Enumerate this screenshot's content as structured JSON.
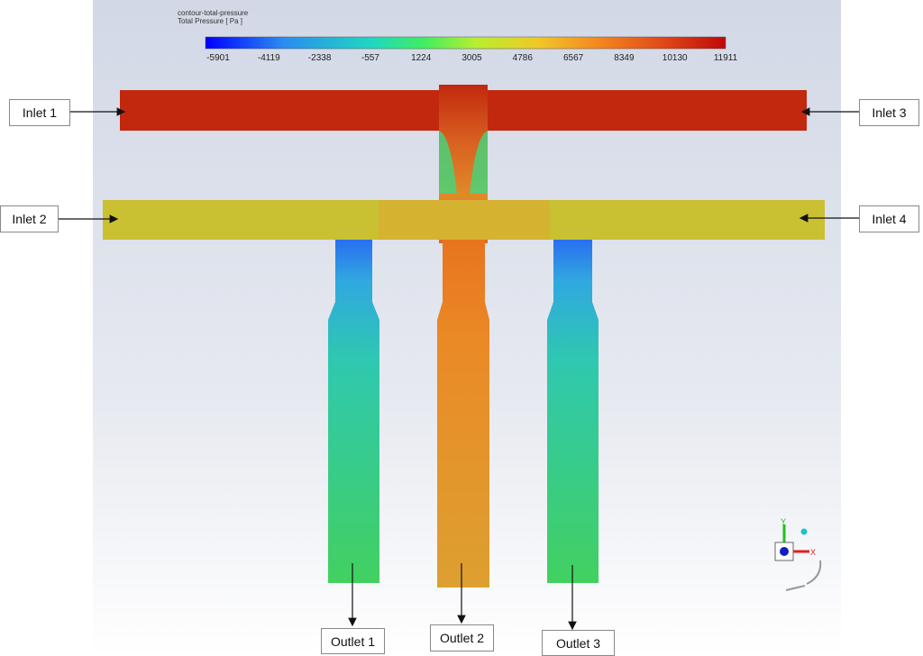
{
  "colorbar": {
    "title": "contour-total-pressure",
    "quantity": "Total Pressure [ Pa ]",
    "ticks": [
      "-5901",
      "-4119",
      "-2338",
      "-557",
      "1224",
      "3005",
      "4786",
      "6567",
      "8349",
      "10130",
      "11911"
    ],
    "min": -5901,
    "max": 11911,
    "colors": [
      "#0000ff",
      "#2a8cf0",
      "#20d8c0",
      "#40ee60",
      "#b8ee30",
      "#f0c828",
      "#f58a20",
      "#e04818",
      "#c00808"
    ]
  },
  "labels": {
    "inlet1": "Inlet 1",
    "inlet2": "Inlet 2",
    "inlet3": "Inlet 3",
    "inlet4": "Inlet 4",
    "outlet1": "Outlet 1",
    "outlet2": "Outlet 2",
    "outlet3": "Outlet 3"
  },
  "axes_triad": {
    "x": "X",
    "y": "Y"
  },
  "region_colors": {
    "top_pipe": "#c2280e",
    "lower_pipe": "#c9c032",
    "outlet_side": "#3ccf6a",
    "outlet_center": "#e39a2e"
  }
}
